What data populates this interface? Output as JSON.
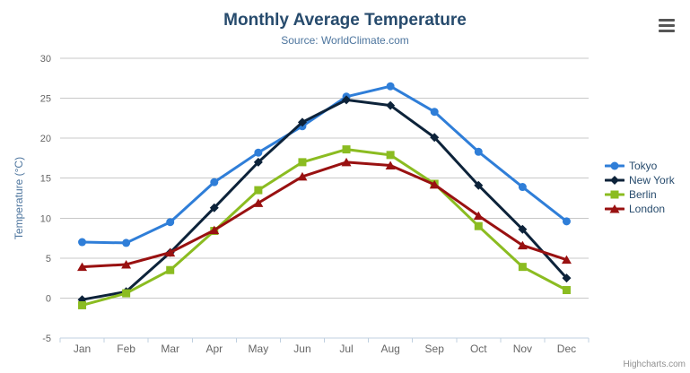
{
  "chart_data": {
    "type": "line",
    "title": "Monthly Average Temperature",
    "subtitle": "Source: WorldClimate.com",
    "categories": [
      "Jan",
      "Feb",
      "Mar",
      "Apr",
      "May",
      "Jun",
      "Jul",
      "Aug",
      "Sep",
      "Oct",
      "Nov",
      "Dec"
    ],
    "series": [
      {
        "name": "Tokyo",
        "color": "#2f7ed8",
        "marker": "circle",
        "values": [
          7.0,
          6.9,
          9.5,
          14.5,
          18.2,
          21.5,
          25.2,
          26.5,
          23.3,
          18.3,
          13.9,
          9.6
        ]
      },
      {
        "name": "New York",
        "color": "#0d233a",
        "marker": "diamond",
        "values": [
          -0.2,
          0.8,
          5.7,
          11.3,
          17.0,
          22.0,
          24.8,
          24.1,
          20.1,
          14.1,
          8.6,
          2.5
        ]
      },
      {
        "name": "Berlin",
        "color": "#8bbc21",
        "marker": "square",
        "values": [
          -0.9,
          0.6,
          3.5,
          8.4,
          13.5,
          17.0,
          18.6,
          17.9,
          14.3,
          9.0,
          3.9,
          1.0
        ]
      },
      {
        "name": "London",
        "color": "#991111",
        "marker": "triangle",
        "values": [
          3.9,
          4.2,
          5.7,
          8.5,
          11.9,
          15.2,
          17.0,
          16.6,
          14.2,
          10.3,
          6.6,
          4.8
        ]
      }
    ],
    "xlabel": "",
    "ylabel": "Temperature (°C)",
    "ylim": [
      -5,
      30
    ],
    "ytick_step": 5,
    "grid": true,
    "legend_position": "right",
    "colors": {
      "title": "#274b6d",
      "subtitle": "#4d759e",
      "grid": "#c8c8c8",
      "axis_line": "#c0d0e0",
      "tick_label": "#666666",
      "axis_title": "#4d759e",
      "legend_text": "#274b6d"
    }
  },
  "context_menu": {
    "icon": "hamburger-icon"
  },
  "credits": {
    "label": "Highcharts.com"
  }
}
